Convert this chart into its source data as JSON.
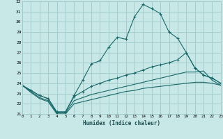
{
  "xlabel": "Humidex (Indice chaleur)",
  "bg_color": "#c8e8e8",
  "grid_color": "#a0c8c8",
  "line_color": "#1a6868",
  "x": [
    0,
    1,
    2,
    3,
    4,
    5,
    6,
    7,
    8,
    9,
    10,
    11,
    12,
    13,
    14,
    15,
    16,
    17,
    18,
    19,
    20,
    21,
    22,
    23
  ],
  "line1": [
    23.8,
    23.3,
    22.8,
    22.5,
    21.2,
    21.2,
    22.8,
    24.3,
    25.9,
    26.2,
    27.5,
    28.5,
    28.3,
    30.5,
    31.7,
    31.3,
    30.8,
    29.0,
    28.4,
    27.0,
    25.5,
    24.8,
    24.5,
    24.0
  ],
  "line2": [
    23.8,
    23.3,
    22.8,
    22.5,
    21.2,
    21.2,
    22.7,
    23.2,
    23.7,
    24.0,
    24.3,
    24.5,
    24.8,
    25.0,
    25.3,
    25.6,
    25.8,
    26.0,
    26.3,
    27.0,
    25.5,
    24.8,
    24.5,
    24.0
  ],
  "line3": [
    23.8,
    23.2,
    22.6,
    22.3,
    21.1,
    21.1,
    22.3,
    22.6,
    22.9,
    23.1,
    23.3,
    23.5,
    23.7,
    23.9,
    24.1,
    24.3,
    24.5,
    24.7,
    24.9,
    25.1,
    25.1,
    25.2,
    24.3,
    23.8
  ],
  "line4": [
    23.8,
    23.1,
    22.5,
    22.2,
    21.0,
    21.0,
    22.0,
    22.2,
    22.4,
    22.6,
    22.8,
    23.0,
    23.2,
    23.3,
    23.5,
    23.6,
    23.7,
    23.8,
    23.9,
    24.0,
    24.1,
    24.1,
    24.0,
    23.8
  ],
  "ylim": [
    21,
    32
  ],
  "xlim": [
    0,
    23
  ],
  "yticks": [
    21,
    22,
    23,
    24,
    25,
    26,
    27,
    28,
    29,
    30,
    31,
    32
  ],
  "xticks": [
    0,
    1,
    2,
    3,
    4,
    5,
    6,
    7,
    8,
    9,
    10,
    11,
    12,
    13,
    14,
    15,
    16,
    17,
    18,
    19,
    20,
    21,
    22,
    23
  ]
}
